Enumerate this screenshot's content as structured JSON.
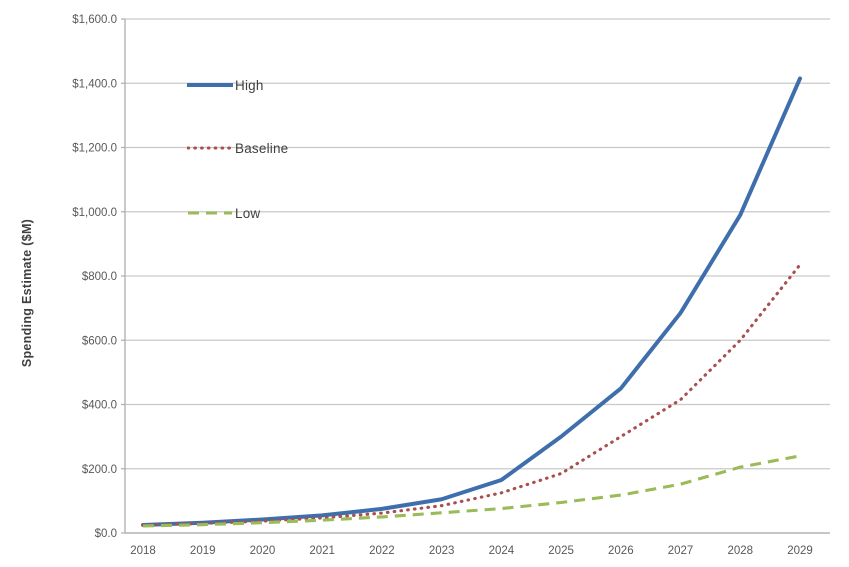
{
  "chart_data": {
    "type": "line",
    "title": "",
    "xlabel": "",
    "ylabel": "Spending Estimate ($M)",
    "categories": [
      "2018",
      "2019",
      "2020",
      "2021",
      "2022",
      "2023",
      "2024",
      "2025",
      "2026",
      "2027",
      "2028",
      "2029"
    ],
    "series": [
      {
        "name": "High",
        "style": "solid",
        "color": "#3E6FAC",
        "values": [
          25,
          32,
          42,
          55,
          75,
          105,
          165,
          300,
          450,
          685,
          990,
          1415
        ]
      },
      {
        "name": "Baseline",
        "style": "dotted",
        "color": "#A94F4F",
        "values": [
          25,
          30,
          37,
          47,
          62,
          85,
          125,
          185,
          300,
          415,
          600,
          835
        ]
      },
      {
        "name": "Low",
        "style": "dashed",
        "color": "#9BBB59",
        "values": [
          22,
          26,
          32,
          40,
          50,
          63,
          76,
          95,
          118,
          152,
          205,
          240
        ]
      }
    ],
    "ylim": [
      0,
      1600
    ],
    "y_tick_step": 200,
    "y_tick_labels": [
      "$0.0",
      "$200.0",
      "$400.0",
      "$600.0",
      "$800.0",
      "$1,000.0",
      "$1,200.0",
      "$1,400.0",
      "$1,600.0"
    ],
    "grid": true,
    "legend_position": "inside-top-left"
  },
  "colors": {
    "background": "#FFFFFF",
    "gridline": "#C9C9C9",
    "axis_line": "#ADADAD",
    "tick_text": "#595959",
    "axis_title_text": "#3F3F3F",
    "legend_text": "#3F3F3F"
  }
}
